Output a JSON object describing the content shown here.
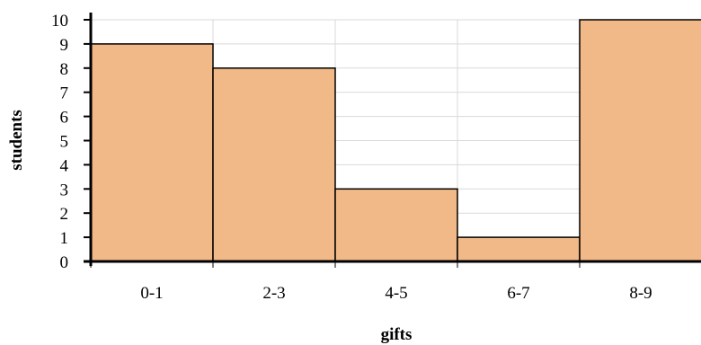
{
  "chart_data": {
    "type": "bar",
    "title": "",
    "xlabel": "gifts",
    "ylabel": "students",
    "categories": [
      "0-1",
      "2-3",
      "4-5",
      "6-7",
      "8-9"
    ],
    "values": [
      9,
      8,
      3,
      1,
      10
    ],
    "ylim": [
      0,
      10
    ],
    "yticks": [
      "0",
      "1",
      "2",
      "3",
      "4",
      "5",
      "6",
      "7",
      "8",
      "9",
      "10"
    ],
    "grid": true,
    "bar_color": "#f0b987",
    "bar_edge_color": "#000000",
    "grid_color": "#d9d9d9"
  }
}
